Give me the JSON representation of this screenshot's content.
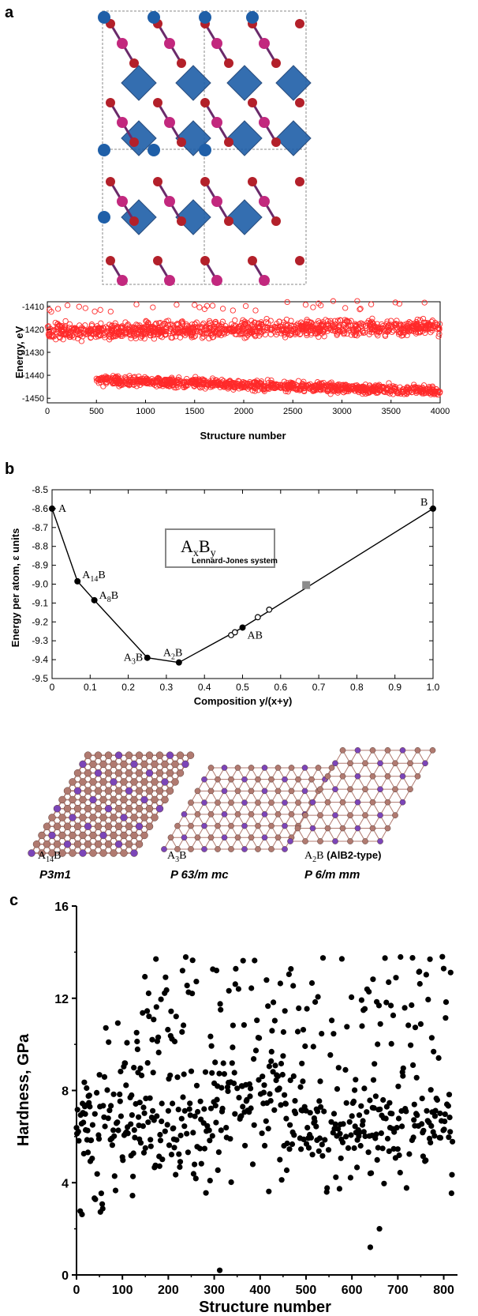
{
  "panels": {
    "a": {
      "label": "a"
    },
    "b": {
      "label": "b"
    },
    "c": {
      "label": "c"
    }
  },
  "colors": {
    "panel_a_marker": "#ff2a2a",
    "crystal_blue": "#1f5fa8",
    "crystal_red": "#b3202a",
    "crystal_magenta": "#c2287e",
    "lattice_brown": "#b07a70",
    "lattice_purple": "#7b45b8"
  },
  "structures": [
    {
      "name": "A14B",
      "base": "A",
      "sub": "14",
      "tail": "B",
      "extra": "",
      "spacegroup": "P3m1"
    },
    {
      "name": "A3B",
      "base": "A",
      "sub": "3",
      "tail": "B",
      "extra": "",
      "spacegroup": "P 63/m mc"
    },
    {
      "name": "A2B",
      "base": "A",
      "sub": "2",
      "tail": "B",
      "extra": " (AlB2-type)",
      "spacegroup": "P 6/m mm"
    }
  ],
  "chart_data": [
    {
      "panel": "a",
      "type": "scatter",
      "marker": "open-circle",
      "xlabel": "Structure number",
      "ylabel": "Energy, eV",
      "xlim": [
        0,
        4000
      ],
      "ylim": [
        -1452,
        -1408
      ],
      "xticks": [
        0,
        500,
        1000,
        1500,
        2000,
        2500,
        3000,
        3500,
        4000
      ],
      "yticks": [
        -1410,
        -1420,
        -1430,
        -1440,
        -1450
      ],
      "series": [
        {
          "band": "upper",
          "x_range": [
            0,
            4000
          ],
          "y_center_start": -1421,
          "y_center_end": -1419,
          "spread": 5
        },
        {
          "band": "lower",
          "x_range": [
            500,
            4000
          ],
          "y_center_start": -1442,
          "y_center_end": -1447,
          "spread": 3
        }
      ]
    },
    {
      "panel": "b",
      "type": "line",
      "title": "AxBy",
      "title_base": "A",
      "title_sub1": "x",
      "title_mid": "B",
      "title_sub2": "y",
      "subtitle": "Lennard-Jones system",
      "xlabel": "Composition y/(x+y)",
      "ylabel": "Energy per atom, ε units",
      "xlim": [
        0,
        1
      ],
      "ylim": [
        -9.5,
        -8.5
      ],
      "xticks": [
        "0",
        "0.1",
        "0.2",
        "0.3",
        "0.4",
        "0.5",
        "0.6",
        "0.7",
        "0.8",
        "0.9",
        "1.0"
      ],
      "yticks": [
        "-8.5",
        "-8.6",
        "-8.7",
        "-8.8",
        "-8.9",
        "-9.0",
        "-9.1",
        "-9.2",
        "-9.3",
        "-9.4",
        "-9.5"
      ],
      "hull_points": [
        {
          "x": 0.0,
          "y": -8.6,
          "label": "A",
          "sub": "",
          "tail": ""
        },
        {
          "x": 0.0667,
          "y": -8.985,
          "label": "A",
          "sub": "14",
          "tail": "B"
        },
        {
          "x": 0.111,
          "y": -9.085,
          "label": "A",
          "sub": "8",
          "tail": "B"
        },
        {
          "x": 0.25,
          "y": -9.39,
          "label": "A",
          "sub": "3",
          "tail": "B"
        },
        {
          "x": 0.333,
          "y": -9.415,
          "label": "A",
          "sub": "2",
          "tail": "B"
        },
        {
          "x": 0.5,
          "y": -9.23,
          "label": "AB",
          "sub": "",
          "tail": ""
        },
        {
          "x": 1.0,
          "y": -8.6,
          "label": "B",
          "sub": "",
          "tail": ""
        }
      ],
      "open_points": [
        {
          "x": 0.47,
          "y": -9.27
        },
        {
          "x": 0.48,
          "y": -9.255
        },
        {
          "x": 0.54,
          "y": -9.175
        },
        {
          "x": 0.57,
          "y": -9.135
        }
      ],
      "square_point": {
        "x": 0.667,
        "y": -9.005
      }
    },
    {
      "panel": "c",
      "type": "scatter",
      "marker": "filled-circle",
      "xlabel": "Structure number",
      "ylabel": "Hardness, GPa",
      "xlim": [
        0,
        830
      ],
      "ylim": [
        0,
        16
      ],
      "xticks": [
        0,
        100,
        200,
        300,
        400,
        500,
        600,
        700,
        800
      ],
      "yticks": [
        0,
        4,
        8,
        12,
        16
      ],
      "max_hardness": 13.8,
      "outliers": [
        {
          "x": 312,
          "y": 0.2
        },
        {
          "x": 640,
          "y": 1.2
        },
        {
          "x": 660,
          "y": 2.0
        }
      ]
    }
  ]
}
